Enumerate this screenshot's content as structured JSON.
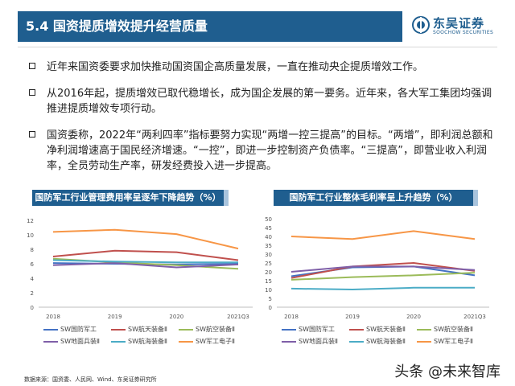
{
  "header": {
    "title": "5.4 国资提质增效提升经营质量",
    "logo_cn": "东吴证券",
    "logo_en": "SOOCHOW SECURITIES"
  },
  "bullets": [
    "近年来国资委要求加快推动国资国企高质量发展，一直在推动央企提质增效工作。",
    "从2016年起，提质增效已取代稳增长，成为国企发展的第一要务。近年来，各大军工集团均强调推进提质增效专项行动。",
    "国资委称，2022年“两利四率”指标要努力实现“两增一控三提高”的目标。“两增”，即利润总额和净利润增速高于国民经济增速。“一控”，即进一步控制资产负债率。“三提高”，即营业收入利润率，全员劳动生产率，研发经费投入进一步提高。"
  ],
  "chart_data": [
    {
      "type": "line",
      "title": "国防军工行业管理费用率呈逐年下降趋势（%）",
      "categories": [
        "2018",
        "2019",
        "2020",
        "2021Q3"
      ],
      "ylim": [
        0,
        12
      ],
      "yticks": [
        0,
        2,
        4,
        6,
        8,
        10,
        12
      ],
      "grid": false,
      "legend_position": "bottom",
      "series": [
        {
          "name": "SW国防军工",
          "color": "#4472c4",
          "values": [
            6.1,
            6.0,
            5.9,
            6.0
          ]
        },
        {
          "name": "SW航天装备Ⅱ",
          "color": "#c0504d",
          "values": [
            7.0,
            7.8,
            7.6,
            6.5
          ]
        },
        {
          "name": "SW航空装备Ⅱ",
          "color": "#9bbb59",
          "values": [
            6.7,
            6.2,
            5.8,
            5.3
          ]
        },
        {
          "name": "SW地面兵装Ⅱ",
          "color": "#7f5fa8",
          "values": [
            5.8,
            6.1,
            5.5,
            5.9
          ]
        },
        {
          "name": "SW航海装备Ⅱ",
          "color": "#4bacc6",
          "values": [
            6.5,
            6.3,
            6.2,
            6.2
          ]
        },
        {
          "name": "SW军工电子Ⅱ",
          "color": "#f79646",
          "values": [
            10.4,
            10.7,
            10.1,
            8.1
          ]
        }
      ]
    },
    {
      "type": "line",
      "title": "国防军工行业整体毛利率呈上升趋势（%）",
      "categories": [
        "2018",
        "2019",
        "2020",
        "2021Q3"
      ],
      "ylim": [
        0,
        50
      ],
      "yticks": [
        0,
        5,
        10,
        15,
        20,
        25,
        30,
        35,
        40,
        45,
        50
      ],
      "grid": false,
      "legend_position": "bottom",
      "series": [
        {
          "name": "SW国防军工",
          "color": "#4472c4",
          "values": [
            17.5,
            22.5,
            23.0,
            18.0
          ]
        },
        {
          "name": "SW航天装备Ⅱ",
          "color": "#c0504d",
          "values": [
            16.5,
            23.0,
            25.0,
            20.5
          ]
        },
        {
          "name": "SW航空装备Ⅱ",
          "color": "#9bbb59",
          "values": [
            15.5,
            17.0,
            18.0,
            19.5
          ]
        },
        {
          "name": "SW地面兵装Ⅱ",
          "color": "#7f5fa8",
          "values": [
            20.0,
            23.0,
            23.0,
            21.0
          ]
        },
        {
          "name": "SW航海装备Ⅱ",
          "color": "#4bacc6",
          "values": [
            10.5,
            10.0,
            11.0,
            11.0
          ]
        },
        {
          "name": "SW军工电子Ⅱ",
          "color": "#f79646",
          "values": [
            40.0,
            38.5,
            43.0,
            38.5
          ]
        }
      ]
    }
  ],
  "footer": {
    "source": "数据来源：国资委、人民网、Wind、东吴证券研究所",
    "watermark": "头条 @未来智库"
  }
}
